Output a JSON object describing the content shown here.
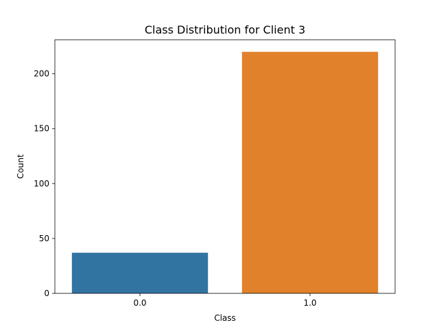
{
  "chart_data": {
    "type": "bar",
    "title": "Class Distribution for Client 3",
    "xlabel": "Class",
    "ylabel": "Count",
    "categories": [
      "0.0",
      "1.0"
    ],
    "values": [
      37,
      220
    ],
    "colors": [
      "#3274a1",
      "#e1812c"
    ],
    "ylim": [
      0,
      231
    ],
    "yticks": [
      0,
      50,
      100,
      150,
      200
    ],
    "grid": false,
    "legend": "none"
  }
}
